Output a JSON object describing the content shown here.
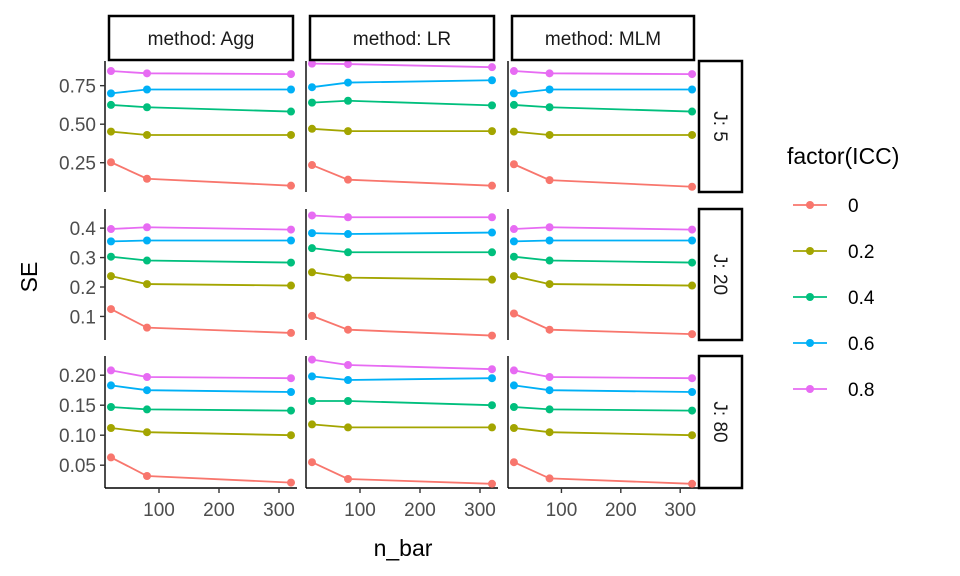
{
  "chart_data": {
    "type": "line",
    "facet_cols": [
      "method: Agg",
      "method: LR",
      "method: MLM"
    ],
    "facet_rows": [
      "J: 5",
      "J: 20",
      "J: 80"
    ],
    "xlabel": "n_bar",
    "ylabel": "SE",
    "x": [
      20,
      80,
      320
    ],
    "x_ticks": [
      100,
      200,
      300
    ],
    "x_tick_labels": [
      "100",
      "200",
      "300"
    ],
    "xlim": [
      10,
      330
    ],
    "legend": {
      "title": "factor(ICC)",
      "position": "right",
      "entries": [
        "0",
        "0.2",
        "0.4",
        "0.6",
        "0.8"
      ],
      "colors": [
        "#F8766D",
        "#A3A500",
        "#00BF7D",
        "#00B0F6",
        "#E76BF3"
      ]
    },
    "rows": [
      {
        "label": "J: 5",
        "ylim": [
          0.06,
          0.91
        ],
        "y_ticks": [
          0.25,
          0.5,
          0.75
        ],
        "y_tick_labels": [
          "0.25",
          "0.50",
          "0.75"
        ],
        "panels": [
          {
            "method": "Agg",
            "series": [
              {
                "name": "0",
                "values": [
                  0.253,
                  0.146,
                  0.101
                ]
              },
              {
                "name": "0.2",
                "values": [
                  0.452,
                  0.43,
                  0.43
                ]
              },
              {
                "name": "0.4",
                "values": [
                  0.625,
                  0.61,
                  0.582
                ]
              },
              {
                "name": "0.6",
                "values": [
                  0.7,
                  0.725,
                  0.725
                ]
              },
              {
                "name": "0.8",
                "values": [
                  0.845,
                  0.83,
                  0.825
                ]
              }
            ]
          },
          {
            "method": "LR",
            "series": [
              {
                "name": "0",
                "values": [
                  0.235,
                  0.14,
                  0.101
                ]
              },
              {
                "name": "0.2",
                "values": [
                  0.47,
                  0.455,
                  0.455
                ]
              },
              {
                "name": "0.4",
                "values": [
                  0.64,
                  0.652,
                  0.622
                ]
              },
              {
                "name": "0.6",
                "values": [
                  0.74,
                  0.77,
                  0.785
                ]
              },
              {
                "name": "0.8",
                "values": [
                  0.893,
                  0.89,
                  0.87
                ]
              }
            ]
          },
          {
            "method": "MLM",
            "series": [
              {
                "name": "0",
                "values": [
                  0.24,
                  0.137,
                  0.094
                ]
              },
              {
                "name": "0.2",
                "values": [
                  0.452,
                  0.43,
                  0.43
                ]
              },
              {
                "name": "0.4",
                "values": [
                  0.625,
                  0.61,
                  0.582
                ]
              },
              {
                "name": "0.6",
                "values": [
                  0.7,
                  0.725,
                  0.725
                ]
              },
              {
                "name": "0.8",
                "values": [
                  0.845,
                  0.83,
                  0.825
                ]
              }
            ]
          }
        ]
      },
      {
        "label": "J: 20",
        "ylim": [
          0.02,
          0.465
        ],
        "y_ticks": [
          0.1,
          0.2,
          0.3,
          0.4
        ],
        "y_tick_labels": [
          "0.1",
          "0.2",
          "0.3",
          "0.4"
        ],
        "panels": [
          {
            "method": "Agg",
            "series": [
              {
                "name": "0",
                "values": [
                  0.125,
                  0.062,
                  0.044
                ]
              },
              {
                "name": "0.2",
                "values": [
                  0.237,
                  0.21,
                  0.205
                ]
              },
              {
                "name": "0.4",
                "values": [
                  0.303,
                  0.29,
                  0.283
                ]
              },
              {
                "name": "0.6",
                "values": [
                  0.355,
                  0.358,
                  0.358
                ]
              },
              {
                "name": "0.8",
                "values": [
                  0.397,
                  0.403,
                  0.395
                ]
              }
            ]
          },
          {
            "method": "LR",
            "series": [
              {
                "name": "0",
                "values": [
                  0.102,
                  0.055,
                  0.035
                ]
              },
              {
                "name": "0.2",
                "values": [
                  0.25,
                  0.232,
                  0.225
                ]
              },
              {
                "name": "0.4",
                "values": [
                  0.332,
                  0.318,
                  0.318
                ]
              },
              {
                "name": "0.6",
                "values": [
                  0.383,
                  0.38,
                  0.385
                ]
              },
              {
                "name": "0.8",
                "values": [
                  0.443,
                  0.437,
                  0.437
                ]
              }
            ]
          },
          {
            "method": "MLM",
            "series": [
              {
                "name": "0",
                "values": [
                  0.11,
                  0.055,
                  0.04
                ]
              },
              {
                "name": "0.2",
                "values": [
                  0.237,
                  0.21,
                  0.205
                ]
              },
              {
                "name": "0.4",
                "values": [
                  0.303,
                  0.29,
                  0.283
                ]
              },
              {
                "name": "0.6",
                "values": [
                  0.355,
                  0.358,
                  0.358
                ]
              },
              {
                "name": "0.8",
                "values": [
                  0.397,
                  0.403,
                  0.395
                ]
              }
            ]
          }
        ]
      },
      {
        "label": "J: 80",
        "ylim": [
          0.012,
          0.232
        ],
        "y_ticks": [
          0.05,
          0.1,
          0.15,
          0.2
        ],
        "y_tick_labels": [
          "0.05",
          "0.10",
          "0.15",
          "0.20"
        ],
        "panels": [
          {
            "method": "Agg",
            "series": [
              {
                "name": "0",
                "values": [
                  0.063,
                  0.032,
                  0.021
                ]
              },
              {
                "name": "0.2",
                "values": [
                  0.112,
                  0.105,
                  0.1
                ]
              },
              {
                "name": "0.4",
                "values": [
                  0.147,
                  0.143,
                  0.141
                ]
              },
              {
                "name": "0.6",
                "values": [
                  0.183,
                  0.175,
                  0.172
                ]
              },
              {
                "name": "0.8",
                "values": [
                  0.208,
                  0.197,
                  0.195
                ]
              }
            ]
          },
          {
            "method": "LR",
            "series": [
              {
                "name": "0",
                "values": [
                  0.055,
                  0.027,
                  0.019
                ]
              },
              {
                "name": "0.2",
                "values": [
                  0.118,
                  0.113,
                  0.113
                ]
              },
              {
                "name": "0.4",
                "values": [
                  0.157,
                  0.157,
                  0.15
                ]
              },
              {
                "name": "0.6",
                "values": [
                  0.198,
                  0.192,
                  0.195
                ]
              },
              {
                "name": "0.8",
                "values": [
                  0.226,
                  0.217,
                  0.21
                ]
              }
            ]
          },
          {
            "method": "MLM",
            "series": [
              {
                "name": "0",
                "values": [
                  0.055,
                  0.028,
                  0.019
                ]
              },
              {
                "name": "0.2",
                "values": [
                  0.112,
                  0.105,
                  0.1
                ]
              },
              {
                "name": "0.4",
                "values": [
                  0.147,
                  0.143,
                  0.141
                ]
              },
              {
                "name": "0.6",
                "values": [
                  0.183,
                  0.175,
                  0.172
                ]
              },
              {
                "name": "0.8",
                "values": [
                  0.208,
                  0.197,
                  0.195
                ]
              }
            ]
          }
        ]
      }
    ]
  }
}
